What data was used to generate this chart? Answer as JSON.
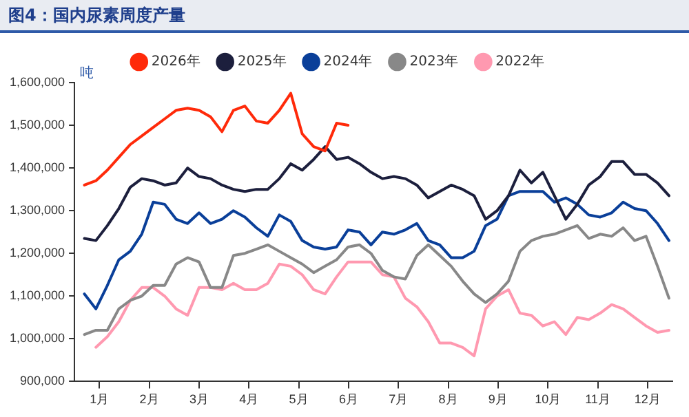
{
  "chart_data": {
    "type": "line",
    "title": "图4：国内尿素周度产量",
    "ylabel": "吨",
    "x": [
      0.2,
      0.43,
      0.66,
      0.89,
      1.12,
      1.35,
      1.58,
      1.81,
      2.04,
      2.27,
      2.5,
      2.73,
      2.96,
      3.19,
      3.42,
      3.65,
      3.88,
      4.11,
      4.34,
      4.57,
      4.8,
      5.03,
      5.26,
      5.49,
      5.72,
      5.95,
      6.18,
      6.41,
      6.64,
      6.87,
      7.1,
      7.33,
      7.56,
      7.79,
      8.02,
      8.25,
      8.48,
      8.71,
      8.94,
      9.17,
      9.4,
      9.63,
      9.86,
      10.09,
      10.32,
      10.55,
      10.78,
      11.01,
      11.24,
      11.47,
      11.7,
      11.93
    ],
    "xlim": [
      0,
      12
    ],
    "xticks": [
      {
        "value": 0.5,
        "label": "1月"
      },
      {
        "value": 1.5,
        "label": "2月"
      },
      {
        "value": 2.5,
        "label": "3月"
      },
      {
        "value": 3.5,
        "label": "4月"
      },
      {
        "value": 4.5,
        "label": "5月"
      },
      {
        "value": 5.5,
        "label": "6月"
      },
      {
        "value": 6.5,
        "label": "7月"
      },
      {
        "value": 7.5,
        "label": "8月"
      },
      {
        "value": 8.5,
        "label": "9月"
      },
      {
        "value": 9.5,
        "label": "10月"
      },
      {
        "value": 10.5,
        "label": "11月"
      },
      {
        "value": 11.5,
        "label": "12月"
      }
    ],
    "ylim": [
      900000,
      1600000
    ],
    "yticks": [
      {
        "value": 900000,
        "label": "900,000"
      },
      {
        "value": 1000000,
        "label": "1,000,000"
      },
      {
        "value": 1100000,
        "label": "1,100,000"
      },
      {
        "value": 1200000,
        "label": "1,200,000"
      },
      {
        "value": 1300000,
        "label": "1,300,000"
      },
      {
        "value": 1400000,
        "label": "1,400,000"
      },
      {
        "value": 1500000,
        "label": "1,500,000"
      },
      {
        "value": 1600000,
        "label": "1,600,000"
      }
    ],
    "series": [
      {
        "name": "2026年",
        "color": "#ff2a0a",
        "x": [
          0.2,
          0.43,
          0.66,
          0.89,
          1.12,
          1.35,
          1.58,
          1.81,
          2.04,
          2.27,
          2.5,
          2.73,
          2.96,
          3.19,
          3.42,
          3.65,
          3.88,
          4.11,
          4.34,
          4.57,
          4.8,
          5.03,
          5.26,
          5.49
        ],
        "values": [
          1360000,
          1370000,
          1395000,
          1425000,
          1455000,
          1475000,
          1495000,
          1515000,
          1535000,
          1540000,
          1535000,
          1520000,
          1485000,
          1535000,
          1545000,
          1510000,
          1505000,
          1535000,
          1575000,
          1480000,
          1450000,
          1440000,
          1505000,
          1500000
        ]
      },
      {
        "name": "2025年",
        "color": "#1c1f3d",
        "values": [
          1235000,
          1230000,
          1265000,
          1305000,
          1355000,
          1375000,
          1370000,
          1360000,
          1365000,
          1400000,
          1380000,
          1375000,
          1360000,
          1350000,
          1345000,
          1350000,
          1350000,
          1375000,
          1410000,
          1395000,
          1420000,
          1450000,
          1420000,
          1425000,
          1410000,
          1390000,
          1375000,
          1380000,
          1375000,
          1360000,
          1330000,
          1345000,
          1360000,
          1350000,
          1335000,
          1280000,
          1300000,
          1335000,
          1395000,
          1365000,
          1390000,
          1335000,
          1280000,
          1315000,
          1360000,
          1380000,
          1415000,
          1415000,
          1385000,
          1385000,
          1365000,
          1335000
        ]
      },
      {
        "name": "2024年",
        "color": "#0a3f99",
        "values": [
          1105000,
          1070000,
          1125000,
          1185000,
          1205000,
          1245000,
          1320000,
          1315000,
          1280000,
          1270000,
          1295000,
          1270000,
          1280000,
          1300000,
          1285000,
          1260000,
          1240000,
          1290000,
          1275000,
          1230000,
          1215000,
          1210000,
          1215000,
          1255000,
          1250000,
          1220000,
          1250000,
          1245000,
          1255000,
          1270000,
          1230000,
          1220000,
          1190000,
          1190000,
          1205000,
          1265000,
          1280000,
          1335000,
          1345000,
          1345000,
          1345000,
          1320000,
          1330000,
          1315000,
          1290000,
          1285000,
          1295000,
          1320000,
          1305000,
          1300000,
          1270000,
          1230000
        ]
      },
      {
        "name": "2023年",
        "color": "#888888",
        "values": [
          1010000,
          1020000,
          1020000,
          1070000,
          1090000,
          1100000,
          1125000,
          1125000,
          1175000,
          1190000,
          1180000,
          1120000,
          1120000,
          1195000,
          1200000,
          1210000,
          1220000,
          1205000,
          1190000,
          1175000,
          1155000,
          1170000,
          1185000,
          1215000,
          1220000,
          1200000,
          1160000,
          1145000,
          1140000,
          1195000,
          1220000,
          1195000,
          1170000,
          1135000,
          1105000,
          1085000,
          1105000,
          1135000,
          1205000,
          1230000,
          1240000,
          1245000,
          1255000,
          1265000,
          1235000,
          1245000,
          1240000,
          1260000,
          1230000,
          1240000,
          1170000,
          1095000
        ]
      },
      {
        "name": "2022年",
        "color": "#ff99b0",
        "values": [
          null,
          980000,
          1005000,
          1040000,
          1090000,
          1120000,
          1120000,
          1100000,
          1070000,
          1055000,
          1120000,
          1120000,
          1115000,
          1130000,
          1115000,
          1115000,
          1130000,
          1175000,
          1170000,
          1150000,
          1115000,
          1105000,
          1145000,
          1180000,
          1180000,
          1180000,
          1150000,
          1145000,
          1095000,
          1075000,
          1040000,
          990000,
          990000,
          980000,
          960000,
          1070000,
          1100000,
          1115000,
          1060000,
          1055000,
          1030000,
          1040000,
          1010000,
          1050000,
          1045000,
          1060000,
          1080000,
          1070000,
          1050000,
          1030000,
          1015000,
          1020000
        ]
      }
    ],
    "legend": "top",
    "grid": false,
    "marker": "none",
    "line_style": "solid"
  }
}
